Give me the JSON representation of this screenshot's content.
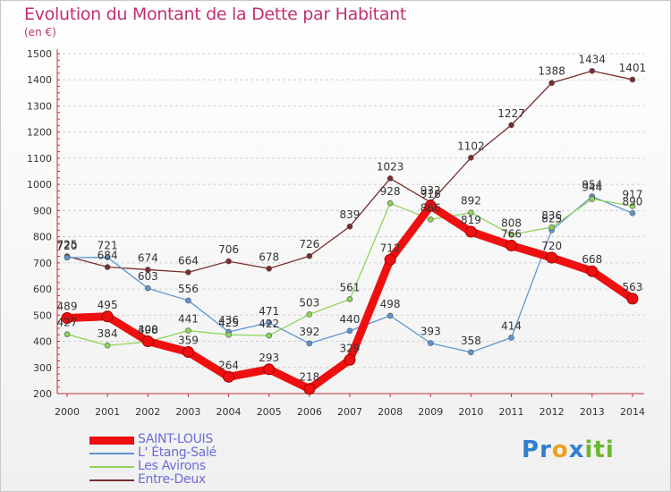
{
  "title": "Evolution du Montant de la Dette par Habitant",
  "unit": "(en €)",
  "logo": {
    "letters": [
      "P",
      "r",
      "o",
      "x",
      "i",
      "t",
      "i"
    ],
    "colors": [
      "#2e7fd0",
      "#2e7fd0",
      "#f0a020",
      "#2e7fd0",
      "#6ab82e",
      "#6ab82e",
      "#6ab82e"
    ]
  },
  "chart_data": {
    "type": "line",
    "x": [
      "2000",
      "2001",
      "2002",
      "2003",
      "2004",
      "2005",
      "2006",
      "2007",
      "2008",
      "2009",
      "2010",
      "2011",
      "2012",
      "2013",
      "2014"
    ],
    "ylim": [
      200,
      1500
    ],
    "yticks": [
      "200",
      "300",
      "400",
      "500",
      "600",
      "700",
      "800",
      "900",
      "1000",
      "1100",
      "1200",
      "1300",
      "1400",
      "1500"
    ],
    "grid": "horizontal dashed",
    "series": [
      {
        "name": "Entre-Deux",
        "color": "#7a2e2e",
        "width": "thin",
        "values": [
          725,
          684,
          674,
          664,
          706,
          678,
          726,
          839,
          1023,
          932,
          1102,
          1227,
          1388,
          1434,
          1401
        ],
        "labels": [
          "725",
          "684",
          "674",
          "664",
          "706",
          "678",
          "726",
          "839",
          "1023",
          "932",
          "1102",
          "1227",
          "1388",
          "1434",
          "1401"
        ]
      },
      {
        "name": "L' Étang-Salé",
        "color": "#5c96d2",
        "width": "thin",
        "values": [
          720,
          721,
          603,
          556,
          436,
          471,
          392,
          440,
          498,
          393,
          358,
          414,
          825,
          954,
          890
        ],
        "labels": [
          "720",
          "721",
          "603",
          "556",
          "436",
          "471",
          "392",
          "440",
          "498",
          "393",
          "358",
          "414",
          "825",
          "954",
          "890"
        ]
      },
      {
        "name": "Les Avirons",
        "color": "#8ed45a",
        "width": "thin",
        "values": [
          427,
          384,
          398,
          441,
          425,
          422,
          503,
          561,
          928,
          866,
          892,
          808,
          836,
          944,
          917
        ],
        "labels": [
          "427",
          "384",
          "398",
          "441",
          "425",
          "422",
          "503",
          "561",
          "928",
          "866",
          "892",
          "808",
          "836",
          "944",
          "917"
        ]
      },
      {
        "name": "SAINT-LOUIS",
        "color": "#ee1010",
        "width": "thick",
        "values": [
          489,
          495,
          400,
          359,
          264,
          293,
          218,
          329,
          712,
          918,
          819,
          766,
          720,
          668,
          563
        ],
        "labels": [
          "489",
          "495",
          "400",
          "359",
          "264",
          "293",
          "218",
          "329",
          "712",
          "918",
          "819",
          "766",
          "720",
          "668",
          "563"
        ]
      }
    ],
    "legend": {
      "placement": "bottom-left",
      "entries": [
        {
          "name": "SAINT-LOUIS",
          "color": "#ee1010",
          "width": "thick"
        },
        {
          "name": "L' Étang-Salé",
          "color": "#5c96d2",
          "width": "thin"
        },
        {
          "name": "Les Avirons",
          "color": "#8ed45a",
          "width": "thin"
        },
        {
          "name": "Entre-Deux",
          "color": "#7a2e2e",
          "width": "thin"
        }
      ]
    }
  }
}
